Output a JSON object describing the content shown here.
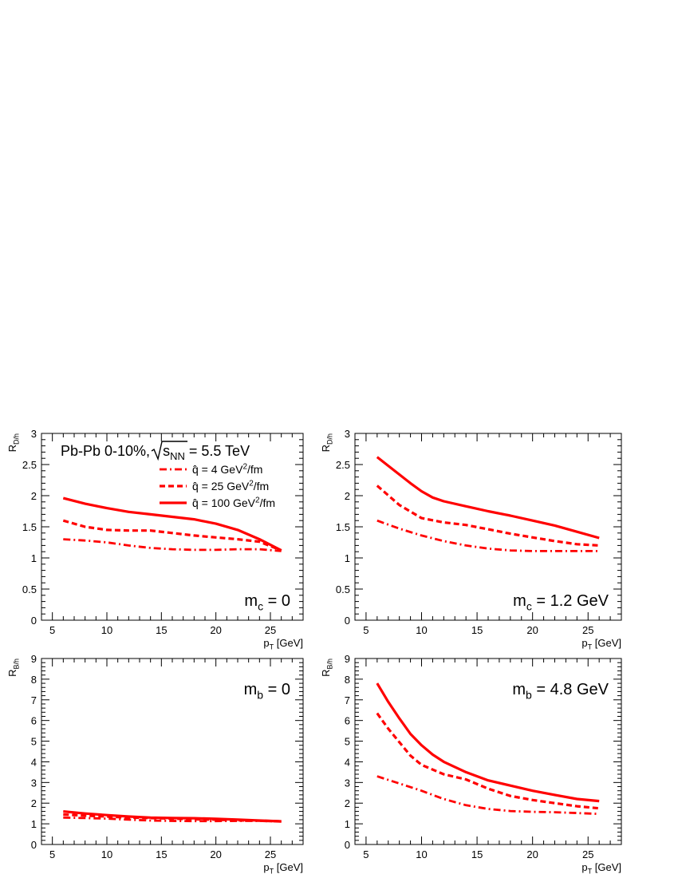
{
  "chart_data": [
    {
      "type": "line",
      "xlabel": "p_T [GeV]",
      "ylabel": "R_D/h",
      "xlim": [
        4,
        28
      ],
      "ylim": [
        0,
        3
      ],
      "xticks": [
        5,
        10,
        15,
        20,
        25
      ],
      "yticks": [
        0,
        0.5,
        1,
        1.5,
        2,
        2.5,
        3
      ],
      "header": "Pb-Pb 0-10%, √s_NN = 5.5 TeV",
      "annotation": "m_c = 0",
      "legend": [
        {
          "label": "q̂ = 4 GeV²/fm",
          "style": "dash-dot"
        },
        {
          "label": "q̂ = 25 GeV²/fm",
          "style": "dashed"
        },
        {
          "label": "q̂ = 100 GeV²/fm",
          "style": "solid"
        }
      ],
      "series": [
        {
          "style": "dash-dot",
          "x": [
            6,
            8,
            10,
            12,
            14,
            16,
            18,
            20,
            22,
            24,
            26
          ],
          "y": [
            1.3,
            1.28,
            1.25,
            1.2,
            1.16,
            1.14,
            1.13,
            1.13,
            1.14,
            1.14,
            1.11
          ]
        },
        {
          "style": "dashed",
          "x": [
            6,
            8,
            10,
            12,
            14,
            16,
            18,
            20,
            22,
            24,
            26
          ],
          "y": [
            1.6,
            1.5,
            1.45,
            1.44,
            1.44,
            1.4,
            1.36,
            1.33,
            1.3,
            1.26,
            1.12
          ]
        },
        {
          "style": "solid",
          "x": [
            6,
            8,
            10,
            12,
            14,
            16,
            18,
            20,
            22,
            24,
            26
          ],
          "y": [
            1.96,
            1.87,
            1.8,
            1.74,
            1.7,
            1.66,
            1.62,
            1.55,
            1.45,
            1.3,
            1.12
          ]
        }
      ]
    },
    {
      "type": "line",
      "xlabel": "p_T [GeV]",
      "ylabel": "R_D/h",
      "xlim": [
        4,
        28
      ],
      "ylim": [
        0,
        3
      ],
      "xticks": [
        5,
        10,
        15,
        20,
        25
      ],
      "yticks": [
        0,
        0.5,
        1,
        1.5,
        2,
        2.5,
        3
      ],
      "annotation": "m_c = 1.2 GeV",
      "series": [
        {
          "style": "dash-dot",
          "x": [
            6,
            8,
            10,
            12,
            14,
            16,
            18,
            20,
            22,
            24,
            26
          ],
          "y": [
            1.6,
            1.47,
            1.36,
            1.27,
            1.2,
            1.15,
            1.12,
            1.11,
            1.11,
            1.11,
            1.11
          ]
        },
        {
          "style": "dashed",
          "x": [
            6,
            8,
            10,
            12,
            14,
            16,
            18,
            20,
            22,
            24,
            26
          ],
          "y": [
            2.16,
            1.85,
            1.64,
            1.57,
            1.53,
            1.46,
            1.39,
            1.33,
            1.27,
            1.22,
            1.2
          ]
        },
        {
          "style": "solid",
          "x": [
            6,
            7,
            8,
            9,
            10,
            11,
            12,
            14,
            16,
            18,
            20,
            22,
            24,
            26
          ],
          "y": [
            2.62,
            2.48,
            2.34,
            2.2,
            2.07,
            1.97,
            1.91,
            1.83,
            1.75,
            1.68,
            1.6,
            1.52,
            1.42,
            1.32
          ]
        }
      ]
    },
    {
      "type": "line",
      "xlabel": "p_T [GeV]",
      "ylabel": "R_B/h",
      "xlim": [
        4,
        28
      ],
      "ylim": [
        0,
        9
      ],
      "xticks": [
        5,
        10,
        15,
        20,
        25
      ],
      "yticks": [
        0,
        1,
        2,
        3,
        4,
        5,
        6,
        7,
        8,
        9
      ],
      "annotation": "m_b = 0",
      "series": [
        {
          "style": "dash-dot",
          "x": [
            6,
            8,
            10,
            12,
            14,
            16,
            18,
            20,
            22,
            24,
            26
          ],
          "y": [
            1.3,
            1.28,
            1.25,
            1.2,
            1.16,
            1.14,
            1.13,
            1.13,
            1.14,
            1.14,
            1.11
          ]
        },
        {
          "style": "dashed",
          "x": [
            6,
            8,
            10,
            12,
            14,
            16,
            18,
            20,
            22,
            24,
            26
          ],
          "y": [
            1.45,
            1.4,
            1.35,
            1.3,
            1.28,
            1.25,
            1.22,
            1.2,
            1.17,
            1.15,
            1.12
          ]
        },
        {
          "style": "solid",
          "x": [
            6,
            8,
            10,
            12,
            14,
            16,
            18,
            20,
            22,
            24,
            26
          ],
          "y": [
            1.6,
            1.5,
            1.42,
            1.35,
            1.3,
            1.28,
            1.27,
            1.24,
            1.2,
            1.16,
            1.12
          ]
        }
      ]
    },
    {
      "type": "line",
      "xlabel": "p_T [GeV]",
      "ylabel": "R_B/h",
      "xlim": [
        4,
        28
      ],
      "ylim": [
        0,
        9
      ],
      "xticks": [
        5,
        10,
        15,
        20,
        25
      ],
      "yticks": [
        0,
        1,
        2,
        3,
        4,
        5,
        6,
        7,
        8,
        9
      ],
      "annotation": "m_b = 4.8 GeV",
      "series": [
        {
          "style": "dash-dot",
          "x": [
            6,
            8,
            10,
            12,
            14,
            16,
            18,
            20,
            22,
            24,
            26
          ],
          "y": [
            3.3,
            2.95,
            2.6,
            2.2,
            1.9,
            1.72,
            1.62,
            1.58,
            1.56,
            1.52,
            1.48
          ]
        },
        {
          "style": "dashed",
          "x": [
            6,
            7,
            8,
            9,
            10,
            12,
            14,
            16,
            18,
            20,
            22,
            24,
            26
          ],
          "y": [
            6.35,
            5.6,
            4.95,
            4.3,
            3.85,
            3.4,
            3.15,
            2.7,
            2.35,
            2.15,
            2.0,
            1.85,
            1.75
          ]
        },
        {
          "style": "solid",
          "x": [
            6,
            7,
            8,
            9,
            10,
            11,
            12,
            14,
            16,
            18,
            20,
            22,
            24,
            26
          ],
          "y": [
            7.8,
            6.9,
            6.1,
            5.35,
            4.8,
            4.35,
            4.0,
            3.5,
            3.1,
            2.85,
            2.6,
            2.4,
            2.2,
            2.1
          ]
        }
      ]
    }
  ],
  "colors": {
    "curve": "#ff0000",
    "axis": "#000000"
  }
}
